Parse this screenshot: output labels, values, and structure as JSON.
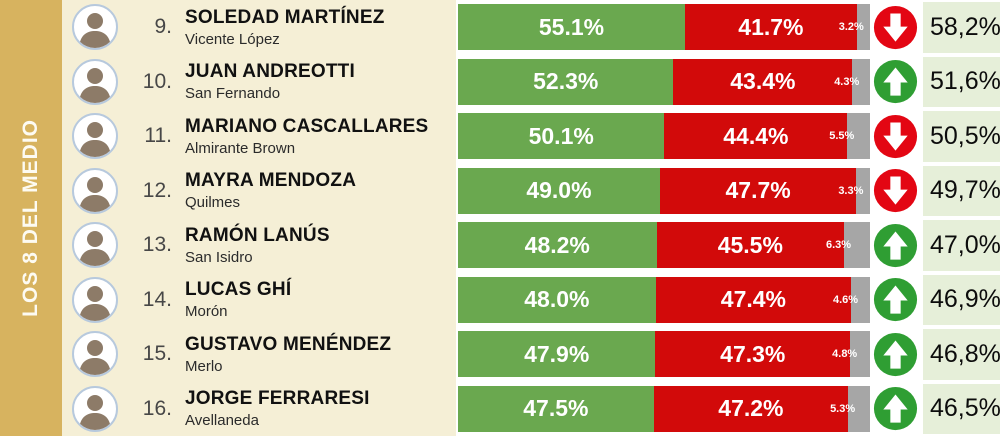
{
  "sidebar": {
    "label": "LOS 8 DEL MEDIO"
  },
  "colors": {
    "sidebar_bg": "#d7b35f",
    "row_bg": "#f5efd6",
    "bar_positive": "#6aa84f",
    "bar_negative": "#d20a0a",
    "bar_neutral": "#a6a6a6",
    "arrow_up": "#2f9e33",
    "arrow_down": "#e30613",
    "result_bg": "#e6efd9"
  },
  "rows": [
    {
      "rank": "9.",
      "name": "SOLEDAD MARTÍNEZ",
      "district": "Vicente López",
      "positive": 55.1,
      "positive_label": "55.1%",
      "negative": 41.7,
      "negative_label": "41.7%",
      "neutral": 3.2,
      "neutral_label": "3.2%",
      "trend": "down",
      "result": "58,2%"
    },
    {
      "rank": "10.",
      "name": "JUAN ANDREOTTI",
      "district": "San Fernando",
      "positive": 52.3,
      "positive_label": "52.3%",
      "negative": 43.4,
      "negative_label": "43.4%",
      "neutral": 4.3,
      "neutral_label": "4.3%",
      "trend": "up",
      "result": "51,6%"
    },
    {
      "rank": "11.",
      "name": "MARIANO CASCALLARES",
      "district": "Almirante Brown",
      "positive": 50.1,
      "positive_label": "50.1%",
      "negative": 44.4,
      "negative_label": "44.4%",
      "neutral": 5.5,
      "neutral_label": "5.5%",
      "trend": "down",
      "result": "50,5%"
    },
    {
      "rank": "12.",
      "name": "MAYRA MENDOZA",
      "district": "Quilmes",
      "positive": 49.0,
      "positive_label": "49.0%",
      "negative": 47.7,
      "negative_label": "47.7%",
      "neutral": 3.3,
      "neutral_label": "3.3%",
      "trend": "down",
      "result": "49,7%"
    },
    {
      "rank": "13.",
      "name": "RAMÓN LANÚS",
      "district": "San Isidro",
      "positive": 48.2,
      "positive_label": "48.2%",
      "negative": 45.5,
      "negative_label": "45.5%",
      "neutral": 6.3,
      "neutral_label": "6.3%",
      "trend": "up",
      "result": "47,0%"
    },
    {
      "rank": "14.",
      "name": "LUCAS GHÍ",
      "district": "Morón",
      "positive": 48.0,
      "positive_label": "48.0%",
      "negative": 47.4,
      "negative_label": "47.4%",
      "neutral": 4.6,
      "neutral_label": "4.6%",
      "trend": "up",
      "result": "46,9%"
    },
    {
      "rank": "15.",
      "name": "GUSTAVO MENÉNDEZ",
      "district": "Merlo",
      "positive": 47.9,
      "positive_label": "47.9%",
      "negative": 47.3,
      "negative_label": "47.3%",
      "neutral": 4.8,
      "neutral_label": "4.8%",
      "trend": "up",
      "result": "46,8%"
    },
    {
      "rank": "16.",
      "name": "JORGE FERRARESI",
      "district": "Avellaneda",
      "positive": 47.5,
      "positive_label": "47.5%",
      "negative": 47.2,
      "negative_label": "47.2%",
      "neutral": 5.3,
      "neutral_label": "5.3%",
      "trend": "up",
      "result": "46,5%"
    }
  ],
  "chart_data": {
    "type": "bar",
    "variant": "horizontal_stacked_100pct_ranking",
    "title": "LOS 8 DEL MEDIO",
    "categories": [
      "SOLEDAD MARTÍNEZ (Vicente López)",
      "JUAN ANDREOTTI (San Fernando)",
      "MARIANO CASCALLARES (Almirante Brown)",
      "MAYRA MENDOZA (Quilmes)",
      "RAMÓN LANÚS (San Isidro)",
      "LUCAS GHÍ (Morón)",
      "GUSTAVO MENÉNDEZ (Merlo)",
      "JORGE FERRARESI (Avellaneda)"
    ],
    "ranks": [
      9,
      10,
      11,
      12,
      13,
      14,
      15,
      16
    ],
    "series": [
      {
        "name": "positive_green",
        "values": [
          55.1,
          52.3,
          50.1,
          49.0,
          48.2,
          48.0,
          47.9,
          47.5
        ]
      },
      {
        "name": "negative_red",
        "values": [
          41.7,
          43.4,
          44.4,
          47.7,
          45.5,
          47.4,
          47.3,
          47.2
        ]
      },
      {
        "name": "neutral_gray",
        "values": [
          3.2,
          4.3,
          5.5,
          3.3,
          6.3,
          4.6,
          4.8,
          5.3
        ]
      }
    ],
    "trend": [
      "down",
      "up",
      "down",
      "down",
      "up",
      "up",
      "up",
      "up"
    ],
    "previous_result": [
      "58,2%",
      "51,6%",
      "50,5%",
      "49,7%",
      "47,0%",
      "46,9%",
      "46,8%",
      "46,5%"
    ],
    "xlim": [
      0,
      100
    ],
    "legend": "none",
    "grid": false
  }
}
